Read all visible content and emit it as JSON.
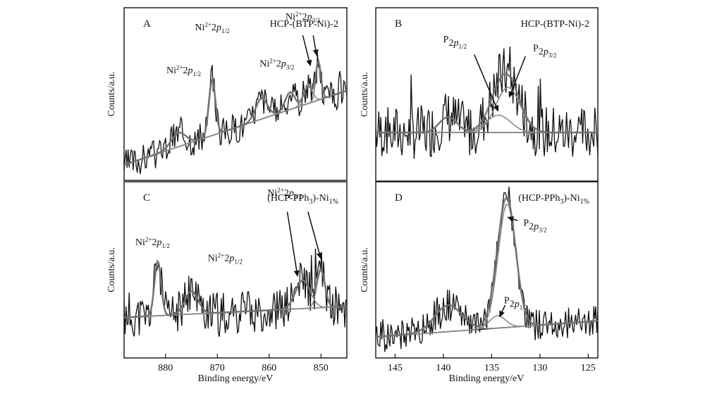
{
  "figure": {
    "x_axis_label": "Binding energy/eV",
    "y_axis_label": "Counts/a.u."
  },
  "chart_data": [
    {
      "panel": "A",
      "type": "line",
      "title": "HCP-(BTP-Ni)-2",
      "xlabel": "Binding energy/eV",
      "ylabel": "Counts/a.u.",
      "xlim": [
        888,
        845
      ],
      "xticks": [],
      "ylim": [
        0,
        100
      ],
      "annotations": [
        {
          "base": "Ni",
          "sup": "2+",
          "mid": "2p",
          "sub": "1/2",
          "x": 876.5,
          "y": 62
        },
        {
          "base": "Ni",
          "sup": "2+",
          "mid": "2p",
          "sub": "1/2",
          "x": 871,
          "y": 87
        },
        {
          "base": "Ni",
          "sup": "2+",
          "mid": "2p",
          "sub": "3/2",
          "x": 858.5,
          "y": 66
        },
        {
          "base": "Ni",
          "sup": "2+",
          "mid": "2p",
          "sub": "3/2",
          "x": 853.5,
          "y": 93
        }
      ],
      "arrows": [
        {
          "from": [
            853.5,
            84
          ],
          "to": [
            852,
            66
          ]
        },
        {
          "from": [
            851.5,
            84
          ],
          "to": [
            850.8,
            72
          ]
        }
      ],
      "background": {
        "x": [
          888,
          845
        ],
        "y": [
          9,
          52
        ]
      },
      "peaks": [
        {
          "center": 877.5,
          "height": 8,
          "width": 2.0
        },
        {
          "center": 871,
          "height": 32,
          "width": 0.9
        },
        {
          "center": 861.5,
          "height": 12,
          "width": 1.6
        },
        {
          "center": 856,
          "height": 10,
          "width": 1.3
        },
        {
          "center": 852.5,
          "height": 10,
          "width": 1.2
        },
        {
          "center": 850.5,
          "height": 22,
          "width": 0.7
        }
      ],
      "noise": 9,
      "seed": 3
    },
    {
      "panel": "B",
      "type": "line",
      "title": "HCP-(BTP-Ni)-2",
      "xlabel": "Binding energy/eV",
      "ylabel": "Counts/a.u.",
      "xlim": [
        147,
        124
      ],
      "xticks": [],
      "ylim": [
        0,
        100
      ],
      "annotations": [
        {
          "base": "P",
          "sup": "",
          "mid": "2p",
          "sub": "1/2",
          "x": 138.8,
          "y": 80
        },
        {
          "base": "P",
          "sup": "",
          "mid": "2p",
          "sub": "3/2",
          "x": 129.5,
          "y": 75
        }
      ],
      "arrows": [
        {
          "from": [
            136.8,
            73
          ],
          "to": [
            134.3,
            40
          ]
        },
        {
          "from": [
            131.5,
            72
          ],
          "to": [
            133.2,
            48
          ]
        }
      ],
      "background": {
        "x": [
          147,
          124
        ],
        "y": [
          28,
          28
        ]
      },
      "peaks": [
        {
          "center": 133.3,
          "height": 26,
          "width": 1.8
        },
        {
          "center": 134.3,
          "height": 10,
          "width": 1.8
        },
        {
          "center": 139.5,
          "height": 9,
          "width": 1.3
        }
      ],
      "noise": 16,
      "seed": 7
    },
    {
      "panel": "C",
      "type": "line",
      "title": "(HCP-PPh3)-Ni1%",
      "xlabel": "Binding energy/eV",
      "ylabel": "Counts/a.u.",
      "xlim": [
        888,
        845
      ],
      "xticks": [
        880,
        870,
        860,
        850
      ],
      "ylim": [
        0,
        100
      ],
      "annotations": [
        {
          "base": "Ni",
          "sup": "2+",
          "mid": "2p",
          "sub": "1/2",
          "x": 882.5,
          "y": 64
        },
        {
          "base": "Ni",
          "sup": "2+",
          "mid": "2p",
          "sub": "1/2",
          "x": 868.5,
          "y": 55
        },
        {
          "base": "Ni",
          "sup": "2+",
          "mid": "2p",
          "sub": "3/2",
          "x": 857,
          "y": 92
        }
      ],
      "arrows": [
        {
          "from": [
            856.5,
            83
          ],
          "to": [
            854.5,
            46
          ]
        },
        {
          "from": [
            852.5,
            83
          ],
          "to": [
            850,
            56
          ]
        }
      ],
      "background": {
        "x": [
          888,
          847
        ],
        "y": [
          23,
          29
        ]
      },
      "peaks": [
        {
          "center": 881.5,
          "height": 31,
          "width": 0.9
        },
        {
          "center": 875,
          "height": 13,
          "width": 1.8
        },
        {
          "center": 853.5,
          "height": 16,
          "width": 2.0
        },
        {
          "center": 850,
          "height": 21,
          "width": 1.1
        }
      ],
      "noise": 12,
      "seed": 11
    },
    {
      "panel": "D",
      "type": "line",
      "title": "(HCP-PPh3)-Ni1%",
      "xlabel": "Binding energy/eV",
      "ylabel": "Counts/a.u.",
      "xlim": [
        147,
        124
      ],
      "xticks": [
        145,
        140,
        135,
        130,
        125
      ],
      "ylim": [
        0,
        100
      ],
      "annotations": [
        {
          "base": "P",
          "sup": "",
          "mid": "2p",
          "sub": "3/2",
          "x": 130.5,
          "y": 75
        },
        {
          "base": "P",
          "sup": "",
          "mid": "2p",
          "sub": "1/2",
          "x": 132.5,
          "y": 31
        }
      ],
      "arrows": [
        {
          "from": [
            132.3,
            78
          ],
          "to": [
            133.4,
            80
          ]
        },
        {
          "from": [
            133.6,
            30
          ],
          "to": [
            134.2,
            23
          ]
        }
      ],
      "background": {
        "x": [
          147,
          124
        ],
        "y": [
          12,
          21
        ]
      },
      "peaks": [
        {
          "center": 133.4,
          "height": 70,
          "width": 1.3
        },
        {
          "center": 134.4,
          "height": 7,
          "width": 1.2
        },
        {
          "center": 139.5,
          "height": 15,
          "width": 2.0
        }
      ],
      "noise": 9,
      "seed": 19
    }
  ]
}
